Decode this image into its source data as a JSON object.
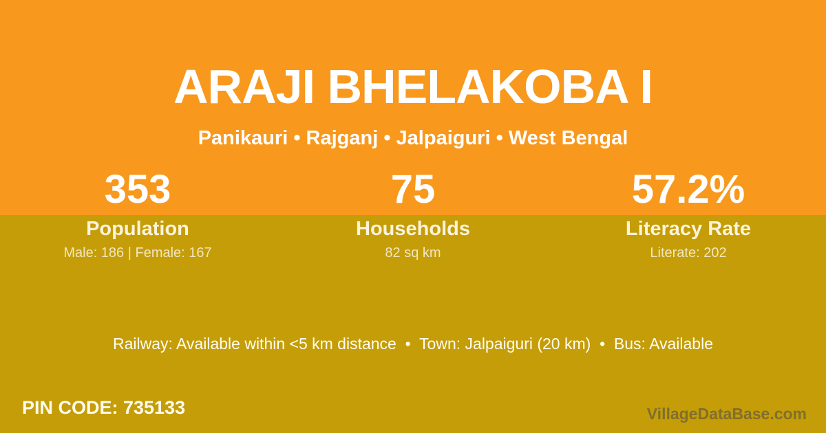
{
  "colors": {
    "header_bg": "#F8981D",
    "body_bg": "#C59D08",
    "text_primary": "#FFFFFF",
    "text_muted_cream": "rgba(255,255,255,0.75)",
    "watermark_gray": "rgba(72,72,72,0.55)"
  },
  "header": {
    "title": "ARAJI BHELAKOBA I",
    "subtitle": "Panikauri • Rajganj • Jalpaiguri • West Bengal"
  },
  "stats": [
    {
      "value": "353",
      "label": "Population",
      "detail": "Male: 186 | Female: 167"
    },
    {
      "value": "75",
      "label": "Households",
      "detail": "82 sq km"
    },
    {
      "value": "57.2%",
      "label": "Literacy Rate",
      "detail": "Literate: 202"
    }
  ],
  "amenities": {
    "line": "Railway: Available within <5 km distance  •  Town: Jalpaiguri (20 km)  •  Bus: Available"
  },
  "footer": {
    "pin_code": "PIN CODE: 735133",
    "watermark": "VillageDataBase.com"
  }
}
